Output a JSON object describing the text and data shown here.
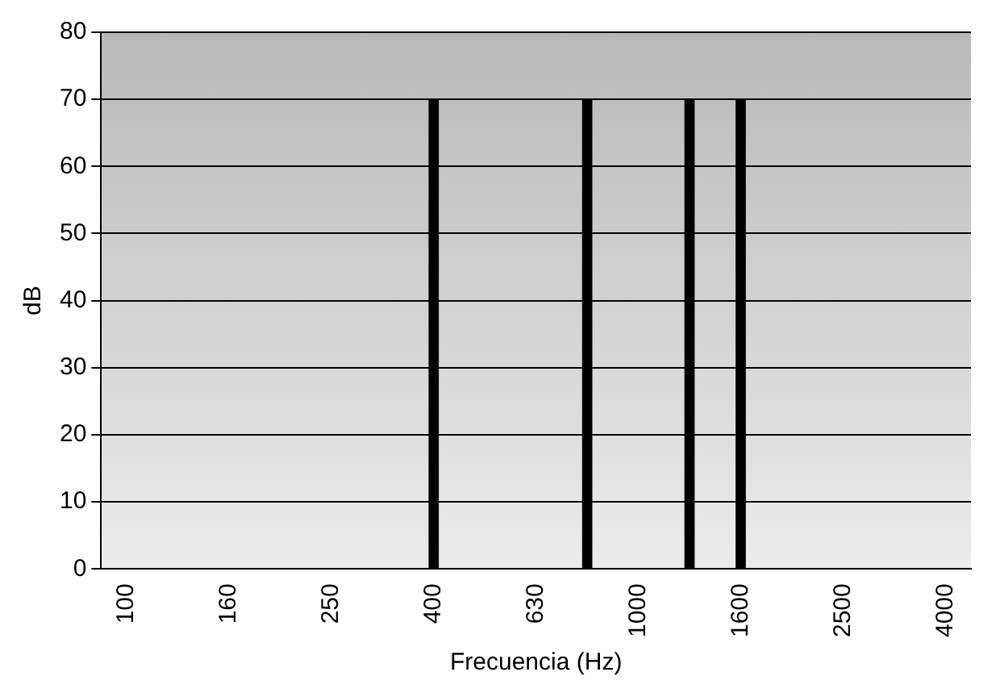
{
  "chart_data": {
    "type": "bar",
    "xlabel": "Frecuencia (Hz)",
    "ylabel": "dB",
    "categories": [
      "100",
      null,
      "160",
      null,
      "250",
      null,
      "400",
      null,
      "630",
      null,
      "1000",
      null,
      "1600",
      null,
      "2500",
      null,
      "4000"
    ],
    "values": [
      0,
      0,
      0,
      0,
      0,
      0,
      70,
      0,
      0,
      70,
      0,
      70,
      70,
      0,
      0,
      0,
      0
    ],
    "color": "#000000",
    "ylim": [
      0,
      80
    ],
    "yticks": [
      0,
      10,
      20,
      30,
      40,
      50,
      60,
      70,
      80
    ],
    "grid": "y"
  }
}
